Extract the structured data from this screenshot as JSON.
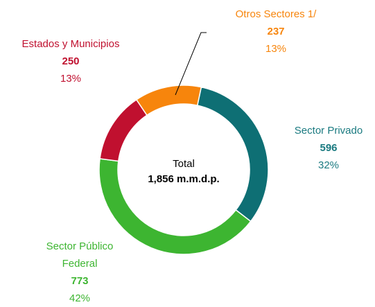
{
  "chart_data": {
    "type": "donut",
    "categories": [
      "Sector Privado",
      "Sector Público Federal",
      "Estados y Municipios",
      "Otros Sectores 1/"
    ],
    "values": [
      596,
      773,
      250,
      237
    ],
    "percent_labels": [
      "32%",
      "42%",
      "13%",
      "13%"
    ],
    "colors": [
      "#0e6f74",
      "#3db531",
      "#c0102f",
      "#f7850c"
    ],
    "center_label": "Total",
    "total_label": "1,856 m.m.d.p."
  }
}
